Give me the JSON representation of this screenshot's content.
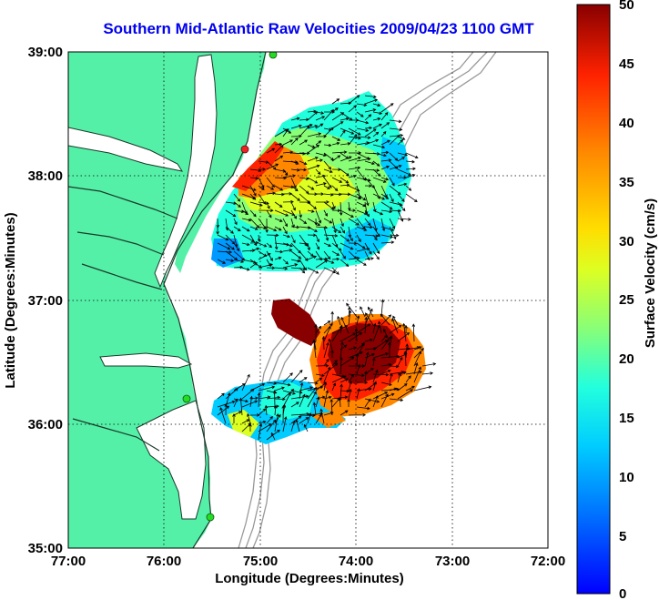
{
  "title": "Southern Mid-Atlantic Raw Velocities 2009/04/23 1100 GMT",
  "x_axis": {
    "label": "Longitude (Degrees:Minutes)",
    "ticks": [
      "77:00",
      "76:00",
      "75:00",
      "74:00",
      "73:00",
      "72:00"
    ]
  },
  "y_axis": {
    "label": "Latitude (Degrees:Minutes)",
    "ticks": [
      "39:00",
      "38:00",
      "37:00",
      "36:00",
      "35:00"
    ]
  },
  "colorbar": {
    "label": "Surface Velocity (cm/s)",
    "min": 0,
    "max": 50,
    "ticks": [
      "50",
      "45",
      "40",
      "35",
      "30",
      "25",
      "20",
      "15",
      "10",
      "5",
      "0"
    ]
  },
  "colors": {
    "land": "#55f0a8",
    "title": "#0000ee",
    "station": "#22dd22",
    "station_active": "#ee2222",
    "contour": "#999999"
  }
}
